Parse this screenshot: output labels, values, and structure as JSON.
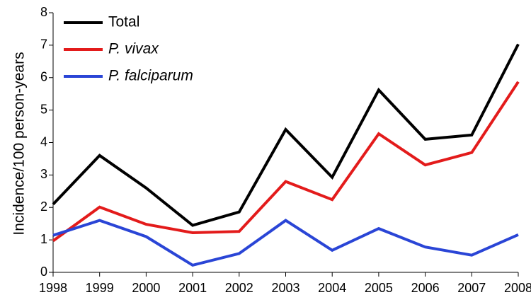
{
  "chart_data": {
    "type": "line",
    "title": "",
    "xlabel": "",
    "ylabel": "Incidence/100 person-years",
    "ylim": [
      0,
      8
    ],
    "yticks": [
      "0",
      "1",
      "2",
      "3",
      "4",
      "5",
      "6",
      "7",
      "8"
    ],
    "x": [
      "1998",
      "1999",
      "2000",
      "2001",
      "2002",
      "2003",
      "2004",
      "2005",
      "2006",
      "2007",
      "2008"
    ],
    "grid": false,
    "legend_position": "top-left",
    "series": [
      {
        "name": "Total",
        "italic": false,
        "color": "#000000",
        "values": [
          2.1,
          3.6,
          2.6,
          1.45,
          1.86,
          4.4,
          2.93,
          5.62,
          4.1,
          4.23,
          7.03
        ]
      },
      {
        "name": "P. vivax",
        "italic": true,
        "color": "#e31b1b",
        "values": [
          0.97,
          2.01,
          1.48,
          1.22,
          1.26,
          2.8,
          2.24,
          4.27,
          3.31,
          3.69,
          5.87
        ]
      },
      {
        "name": "P. falciparum",
        "italic": true,
        "color": "#2a45d6",
        "values": [
          1.14,
          1.6,
          1.1,
          0.22,
          0.58,
          1.6,
          0.68,
          1.35,
          0.78,
          0.53,
          1.16
        ]
      }
    ]
  }
}
